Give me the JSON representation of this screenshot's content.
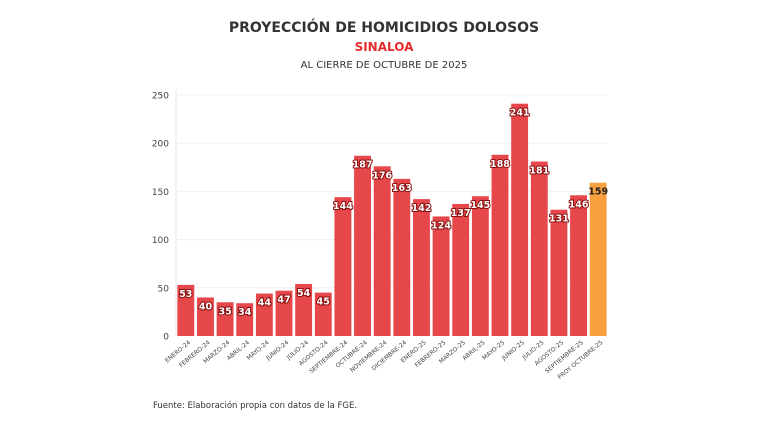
{
  "chart_data": {
    "type": "bar",
    "title": "PROYECCIÓN DE HOMICIDIOS DOLOSOS",
    "subtitle": "SINALOA",
    "subtitle2": "AL CIERRE DE OCTUBRE DE 2025",
    "xlabel": "",
    "ylabel": "",
    "ylim": [
      0,
      250
    ],
    "yticks": [
      0,
      50,
      100,
      150,
      200,
      250
    ],
    "grid": true,
    "categories": [
      "ENERO-24",
      "FEBRERO-24",
      "MARZO-24",
      "ABRIL-24",
      "MAYO-24",
      "JUNIO-24",
      "JULIO-24",
      "AGOSTO-24",
      "SEPTIEMBRE-24",
      "OCTUBRE-24",
      "NOVIEMBRE-24",
      "DICIEMBRE-24",
      "ENERO-25",
      "FEBRERO-25",
      "MARZO-25",
      "ABRIL-25",
      "MAYO-25",
      "JUNIO-25",
      "JULIO-25",
      "AGOSTO-25",
      "SEPTIEMBRE-25",
      "PROY OCTUBRE-25"
    ],
    "values": [
      53,
      40,
      35,
      34,
      44,
      47,
      54,
      45,
      144,
      187,
      176,
      163,
      142,
      124,
      137,
      145,
      188,
      241,
      181,
      131,
      146,
      159
    ],
    "colors": {
      "actual": "#e5474b",
      "projection": "#f9a03f"
    },
    "projection_index": 21
  },
  "source": "Fuente: Elaboración propia con datos de la FGE."
}
